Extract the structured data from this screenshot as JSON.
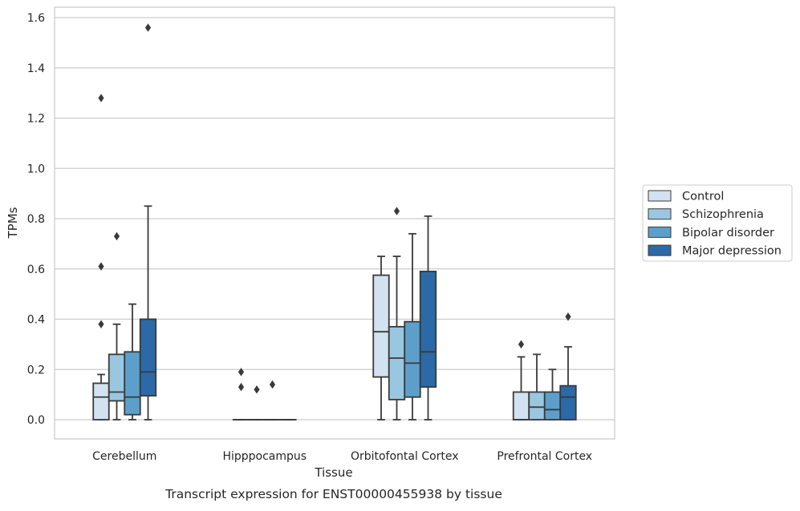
{
  "chart_data": {
    "type": "box",
    "title": "",
    "xlabel": "Tissue",
    "ylabel": "TPMs",
    "caption": "Transcript expression for ENST00000455938 by tissue",
    "ylim": [
      -0.075,
      1.65
    ],
    "yticks": [
      "0.0",
      "0.2",
      "0.4",
      "0.6",
      "0.8",
      "1.0",
      "1.2",
      "1.4",
      "1.6"
    ],
    "grid": true,
    "legend_position": "center-right outside",
    "categories": [
      "Cerebellum",
      "Hipppocampus",
      "Orbitofontal Cortex",
      "Prefrontal Cortex"
    ],
    "series": [
      {
        "name": "Control",
        "color": "#d2e2f1",
        "boxes": [
          {
            "min": 0.0,
            "q1": 0.0,
            "median": 0.09,
            "q3": 0.145,
            "max": 0.18,
            "outliers": [
              0.38,
              0.61,
              1.28
            ]
          },
          {
            "min": 0.0,
            "q1": 0.0,
            "median": 0.0,
            "q3": 0.0,
            "max": 0.0,
            "outliers": [
              0.13,
              0.19
            ]
          },
          {
            "min": 0.0,
            "q1": 0.17,
            "median": 0.35,
            "q3": 0.575,
            "max": 0.65,
            "outliers": []
          },
          {
            "min": 0.0,
            "q1": 0.0,
            "median": 0.0,
            "q3": 0.11,
            "max": 0.25,
            "outliers": [
              0.3
            ]
          }
        ]
      },
      {
        "name": "Schizophrenia",
        "color": "#9ac7e0",
        "boxes": [
          {
            "min": 0.0,
            "q1": 0.075,
            "median": 0.11,
            "q3": 0.26,
            "max": 0.38,
            "outliers": [
              0.73
            ]
          },
          {
            "min": 0.0,
            "q1": 0.0,
            "median": 0.0,
            "q3": 0.0,
            "max": 0.0,
            "outliers": [
              0.12
            ]
          },
          {
            "min": 0.0,
            "q1": 0.08,
            "median": 0.245,
            "q3": 0.37,
            "max": 0.65,
            "outliers": [
              0.83
            ]
          },
          {
            "min": 0.0,
            "q1": 0.0,
            "median": 0.05,
            "q3": 0.11,
            "max": 0.26,
            "outliers": []
          }
        ]
      },
      {
        "name": "Bipolar disorder",
        "color": "#5c9fcb",
        "boxes": [
          {
            "min": 0.0,
            "q1": 0.02,
            "median": 0.09,
            "q3": 0.27,
            "max": 0.46,
            "outliers": []
          },
          {
            "min": 0.0,
            "q1": 0.0,
            "median": 0.0,
            "q3": 0.0,
            "max": 0.0,
            "outliers": [
              0.14
            ]
          },
          {
            "min": 0.0,
            "q1": 0.09,
            "median": 0.225,
            "q3": 0.39,
            "max": 0.74,
            "outliers": []
          },
          {
            "min": 0.0,
            "q1": 0.0,
            "median": 0.04,
            "q3": 0.11,
            "max": 0.2,
            "outliers": []
          }
        ]
      },
      {
        "name": "Major depression",
        "color": "#2b6aa6",
        "boxes": [
          {
            "min": 0.0,
            "q1": 0.095,
            "median": 0.19,
            "q3": 0.4,
            "max": 0.85,
            "outliers": [
              1.56
            ]
          },
          {
            "min": 0.0,
            "q1": 0.0,
            "median": 0.0,
            "q3": 0.0,
            "max": 0.0,
            "outliers": []
          },
          {
            "min": 0.0,
            "q1": 0.13,
            "median": 0.27,
            "q3": 0.59,
            "max": 0.81,
            "outliers": []
          },
          {
            "min": 0.0,
            "q1": 0.0,
            "median": 0.09,
            "q3": 0.135,
            "max": 0.29,
            "outliers": [
              0.41
            ]
          }
        ]
      }
    ]
  }
}
